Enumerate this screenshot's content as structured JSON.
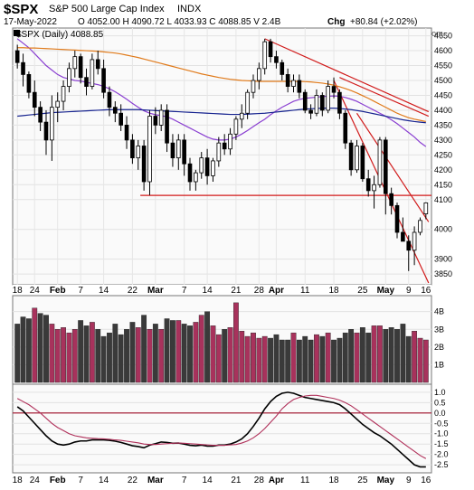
{
  "header": {
    "symbol": "$SPX",
    "name": "S&P 500 Large Cap Index",
    "exchange": "INDX",
    "date": "17-May-2022",
    "ohlc": "O 4052.00  H 4090.72  L 4033.93  C 4088.85  V 2.4B",
    "chg_label": "Chg",
    "chg_value": "+80.84 (+2.02%)",
    "watermark": "© StockCharts.com"
  },
  "price_legend": "$SPX (Daily) 4088.85",
  "colors": {
    "up": "#000000",
    "down": "#000000",
    "volume_up": "#a8325c",
    "volume_down": "#3a3a3a",
    "ma_short": "#8a3fd1",
    "ma_mid": "#e07a1a",
    "ma_long": "#16238f",
    "trend": "#d11b1b",
    "macd": "#000000",
    "signal": "#b0305a",
    "zero_line": "#a0102a",
    "panel_bg": "#fafafa",
    "header_bg": "#ececf5"
  },
  "chart_data": [
    {
      "type": "candlestick",
      "title": "$SPX (Daily) 4088.85",
      "x_labels": [
        "18",
        "24",
        "Feb",
        "7",
        "14",
        "22",
        "Mar",
        "7",
        "14",
        "21",
        "28",
        "Apr",
        "11",
        "18",
        "25",
        "May",
        "9",
        "16"
      ],
      "ylim": [
        3820,
        4670
      ],
      "yticks": [
        3850,
        3900,
        4000,
        4100,
        4150,
        4200,
        4250,
        4300,
        4350,
        4400,
        4450,
        4500,
        4550,
        4600,
        4650
      ],
      "candles": [
        [
          4600,
          4620,
          4540,
          4560
        ],
        [
          4560,
          4590,
          4480,
          4520
        ],
        [
          4520,
          4530,
          4440,
          4460
        ],
        [
          4460,
          4500,
          4380,
          4410
        ],
        [
          4410,
          4430,
          4330,
          4360
        ],
        [
          4360,
          4400,
          4250,
          4300
        ],
        [
          4300,
          4450,
          4230,
          4410
        ],
        [
          4410,
          4460,
          4360,
          4430
        ],
        [
          4430,
          4500,
          4400,
          4480
        ],
        [
          4480,
          4560,
          4460,
          4540
        ],
        [
          4540,
          4600,
          4510,
          4580
        ],
        [
          4580,
          4590,
          4490,
          4510
        ],
        [
          4510,
          4540,
          4450,
          4480
        ],
        [
          4480,
          4590,
          4470,
          4570
        ],
        [
          4570,
          4600,
          4520,
          4540
        ],
        [
          4540,
          4570,
          4440,
          4460
        ],
        [
          4460,
          4480,
          4380,
          4410
        ],
        [
          4410,
          4430,
          4360,
          4390
        ],
        [
          4390,
          4420,
          4330,
          4350
        ],
        [
          4350,
          4380,
          4270,
          4300
        ],
        [
          4300,
          4320,
          4220,
          4240
        ],
        [
          4240,
          4300,
          4200,
          4280
        ],
        [
          4280,
          4300,
          4130,
          4160
        ],
        [
          4160,
          4400,
          4115,
          4380
        ],
        [
          4380,
          4410,
          4320,
          4350
        ],
        [
          4350,
          4420,
          4330,
          4400
        ],
        [
          4400,
          4420,
          4260,
          4290
        ],
        [
          4290,
          4320,
          4210,
          4240
        ],
        [
          4240,
          4320,
          4200,
          4300
        ],
        [
          4300,
          4320,
          4180,
          4220
        ],
        [
          4220,
          4240,
          4130,
          4160
        ],
        [
          4160,
          4200,
          4130,
          4190
        ],
        [
          4190,
          4260,
          4170,
          4240
        ],
        [
          4240,
          4270,
          4150,
          4180
        ],
        [
          4180,
          4240,
          4160,
          4230
        ],
        [
          4230,
          4310,
          4210,
          4290
        ],
        [
          4290,
          4320,
          4250,
          4270
        ],
        [
          4270,
          4340,
          4250,
          4320
        ],
        [
          4320,
          4380,
          4300,
          4370
        ],
        [
          4370,
          4420,
          4340,
          4390
        ],
        [
          4390,
          4470,
          4370,
          4460
        ],
        [
          4460,
          4520,
          4440,
          4500
        ],
        [
          4500,
          4560,
          4470,
          4540
        ],
        [
          4540,
          4640,
          4520,
          4630
        ],
        [
          4630,
          4640,
          4560,
          4580
        ],
        [
          4580,
          4600,
          4540,
          4560
        ],
        [
          4560,
          4570,
          4500,
          4520
        ],
        [
          4520,
          4540,
          4460,
          4480
        ],
        [
          4480,
          4520,
          4460,
          4500
        ],
        [
          4500,
          4520,
          4440,
          4460
        ],
        [
          4460,
          4470,
          4390,
          4400
        ],
        [
          4400,
          4420,
          4370,
          4390
        ],
        [
          4390,
          4470,
          4380,
          4450
        ],
        [
          4450,
          4460,
          4380,
          4400
        ],
        [
          4400,
          4500,
          4390,
          4480
        ],
        [
          4480,
          4510,
          4440,
          4460
        ],
        [
          4460,
          4470,
          4370,
          4390
        ],
        [
          4390,
          4400,
          4270,
          4290
        ],
        [
          4290,
          4300,
          4180,
          4200
        ],
        [
          4200,
          4300,
          4190,
          4280
        ],
        [
          4280,
          4290,
          4160,
          4170
        ],
        [
          4170,
          4200,
          4110,
          4130
        ],
        [
          4130,
          4180,
          4070,
          4150
        ],
        [
          4150,
          4310,
          4140,
          4300
        ],
        [
          4300,
          4310,
          4050,
          4120
        ],
        [
          4120,
          4140,
          4050,
          4080
        ],
        [
          4080,
          4090,
          3970,
          3990
        ],
        [
          3990,
          4040,
          3960,
          3960
        ],
        [
          3960,
          3980,
          3860,
          3930
        ],
        [
          3930,
          4010,
          3880,
          3990
        ],
        [
          3990,
          4040,
          3980,
          4030
        ],
        [
          4052,
          4091,
          4034,
          4089
        ]
      ],
      "moving_averages": [
        {
          "name": "short",
          "values": [
            4640,
            4625,
            4610,
            4590,
            4570,
            4550,
            4535,
            4520,
            4510,
            4505,
            4500,
            4498,
            4494,
            4490,
            4486,
            4480,
            4472,
            4462,
            4450,
            4437,
            4423,
            4410,
            4398,
            4390,
            4385,
            4382,
            4378,
            4370,
            4360,
            4350,
            4340,
            4330,
            4320,
            4310,
            4303,
            4300,
            4300,
            4303,
            4310,
            4320,
            4332,
            4345,
            4358,
            4370,
            4385,
            4398,
            4410,
            4420,
            4430,
            4436,
            4440,
            4442,
            4444,
            4446,
            4447,
            4448,
            4447,
            4443,
            4437,
            4430,
            4420,
            4410,
            4400,
            4390,
            4380,
            4368,
            4355,
            4340,
            4325,
            4310,
            4292,
            4278
          ]
        },
        {
          "name": "mid",
          "values": [
            4610,
            4610,
            4609,
            4609,
            4608,
            4607,
            4606,
            4605,
            4604,
            4603,
            4602,
            4601,
            4600,
            4599,
            4598,
            4596,
            4594,
            4592,
            4589,
            4585,
            4581,
            4577,
            4572,
            4567,
            4562,
            4557,
            4552,
            4547,
            4542,
            4537,
            4532,
            4527,
            4522,
            4518,
            4514,
            4510,
            4507,
            4504,
            4502,
            4500,
            4499,
            4498,
            4497,
            4497,
            4497,
            4497,
            4497,
            4497,
            4497,
            4497,
            4496,
            4495,
            4493,
            4491,
            4488,
            4484,
            4479,
            4473,
            4466,
            4458,
            4449,
            4440,
            4430,
            4420,
            4410,
            4400,
            4390,
            4382,
            4375,
            4370,
            4366,
            4362
          ]
        },
        {
          "name": "long",
          "values": [
            4380,
            4382,
            4384,
            4386,
            4388,
            4390,
            4392,
            4393,
            4394,
            4395,
            4396,
            4397,
            4398,
            4399,
            4400,
            4401,
            4402,
            4402,
            4402,
            4402,
            4402,
            4402,
            4401,
            4400,
            4399,
            4398,
            4397,
            4396,
            4395,
            4394,
            4393,
            4392,
            4391,
            4390,
            4389,
            4388,
            4387,
            4386,
            4386,
            4386,
            4387,
            4388,
            4389,
            4390,
            4392,
            4394,
            4396,
            4398,
            4400,
            4402,
            4404,
            4405,
            4406,
            4407,
            4407,
            4407,
            4406,
            4404,
            4402,
            4399,
            4396,
            4392,
            4388,
            4384,
            4380,
            4376,
            4372,
            4368,
            4365,
            4362,
            4360,
            4358
          ]
        }
      ],
      "support_level": 4114,
      "trend_lines": [
        {
          "from": [
            43,
            4640
          ],
          "to": [
            71,
            4395
          ]
        },
        {
          "from": [
            56,
            4510
          ],
          "to": [
            71,
            4380
          ]
        },
        {
          "from": [
            55,
            4500
          ],
          "to": [
            71,
            3820
          ]
        },
        {
          "from": [
            59,
            4390
          ],
          "to": [
            71,
            4025
          ]
        }
      ]
    },
    {
      "type": "bar",
      "title": "Volume",
      "ylim": [
        0,
        4.8
      ],
      "yticks": [
        1,
        2,
        3,
        4
      ],
      "ytick_labels": [
        "1B",
        "2B",
        "3B",
        "4B"
      ],
      "values": [
        3.3,
        3.7,
        3.6,
        4.2,
        3.9,
        3.8,
        3.3,
        3.0,
        3.1,
        2.8,
        3.0,
        3.5,
        3.2,
        3.4,
        3.0,
        2.6,
        2.8,
        3.3,
        2.7,
        3.0,
        3.4,
        3.1,
        3.8,
        3.0,
        3.3,
        3.0,
        3.6,
        3.5,
        3.5,
        3.3,
        3.2,
        3.4,
        3.8,
        4.0,
        3.2,
        2.7,
        3.0,
        3.1,
        4.5,
        2.9,
        2.6,
        2.8,
        2.5,
        2.6,
        2.5,
        2.7,
        2.4,
        2.4,
        2.8,
        2.4,
        2.6,
        2.4,
        2.7,
        2.6,
        2.8,
        2.4,
        2.5,
        2.8,
        3.0,
        2.8,
        3.1,
        2.8,
        3.2,
        3.2,
        3.0,
        3.1,
        3.0,
        3.3,
        2.6,
        2.9,
        2.5,
        2.4
      ],
      "up_days": [
        0,
        0,
        0,
        1,
        0,
        0,
        1,
        1,
        1,
        1,
        1,
        0,
        0,
        1,
        0,
        0,
        0,
        0,
        0,
        0,
        0,
        1,
        0,
        1,
        0,
        1,
        0,
        0,
        1,
        0,
        0,
        1,
        1,
        0,
        1,
        1,
        0,
        1,
        1,
        1,
        1,
        1,
        1,
        1,
        0,
        0,
        0,
        0,
        1,
        0,
        0,
        0,
        1,
        0,
        1,
        0,
        0,
        0,
        0,
        1,
        0,
        0,
        1,
        1,
        0,
        0,
        0,
        0,
        0,
        1,
        1,
        1
      ]
    },
    {
      "type": "line",
      "title": "MACD",
      "ylim": [
        -2.8,
        1.3
      ],
      "yticks": [
        1.0,
        0.5,
        0.0,
        -0.5,
        -1.0,
        -1.5,
        -2.0,
        -2.5
      ],
      "ytick_labels": [
        "1.0",
        "0.5",
        "0.0",
        "-0.5",
        "-1.0",
        "-1.5",
        "-2.0",
        "-2.5"
      ],
      "series": [
        {
          "role": "macd",
          "values": [
            0.3,
            0.1,
            -0.2,
            -0.5,
            -0.8,
            -1.1,
            -1.35,
            -1.5,
            -1.55,
            -1.5,
            -1.4,
            -1.35,
            -1.35,
            -1.3,
            -1.3,
            -1.3,
            -1.32,
            -1.36,
            -1.42,
            -1.5,
            -1.58,
            -1.62,
            -1.68,
            -1.55,
            -1.48,
            -1.4,
            -1.42,
            -1.46,
            -1.45,
            -1.5,
            -1.56,
            -1.58,
            -1.55,
            -1.6,
            -1.6,
            -1.55,
            -1.55,
            -1.5,
            -1.4,
            -1.25,
            -1.0,
            -0.65,
            -0.25,
            0.2,
            0.55,
            0.8,
            0.95,
            1.0,
            0.95,
            0.85,
            0.75,
            0.7,
            0.65,
            0.6,
            0.55,
            0.5,
            0.4,
            0.2,
            -0.05,
            -0.3,
            -0.55,
            -0.75,
            -0.95,
            -1.1,
            -1.3,
            -1.5,
            -1.75,
            -2.0,
            -2.25,
            -2.5,
            -2.6,
            -2.6
          ]
        },
        {
          "role": "signal",
          "values": [
            0.7,
            0.55,
            0.4,
            0.2,
            0.0,
            -0.25,
            -0.5,
            -0.7,
            -0.85,
            -1.0,
            -1.1,
            -1.15,
            -1.2,
            -1.22,
            -1.24,
            -1.25,
            -1.27,
            -1.3,
            -1.32,
            -1.36,
            -1.4,
            -1.44,
            -1.5,
            -1.52,
            -1.52,
            -1.5,
            -1.48,
            -1.46,
            -1.45,
            -1.46,
            -1.48,
            -1.5,
            -1.52,
            -1.54,
            -1.56,
            -1.56,
            -1.56,
            -1.54,
            -1.52,
            -1.45,
            -1.35,
            -1.2,
            -1.0,
            -0.75,
            -0.45,
            -0.15,
            0.2,
            0.45,
            0.65,
            0.75,
            0.82,
            0.85,
            0.85,
            0.8,
            0.75,
            0.7,
            0.62,
            0.5,
            0.35,
            0.15,
            -0.05,
            -0.25,
            -0.45,
            -0.65,
            -0.85,
            -1.05,
            -1.25,
            -1.45,
            -1.65,
            -1.85,
            -2.05,
            -2.2
          ]
        }
      ],
      "zero_line": 0
    }
  ]
}
